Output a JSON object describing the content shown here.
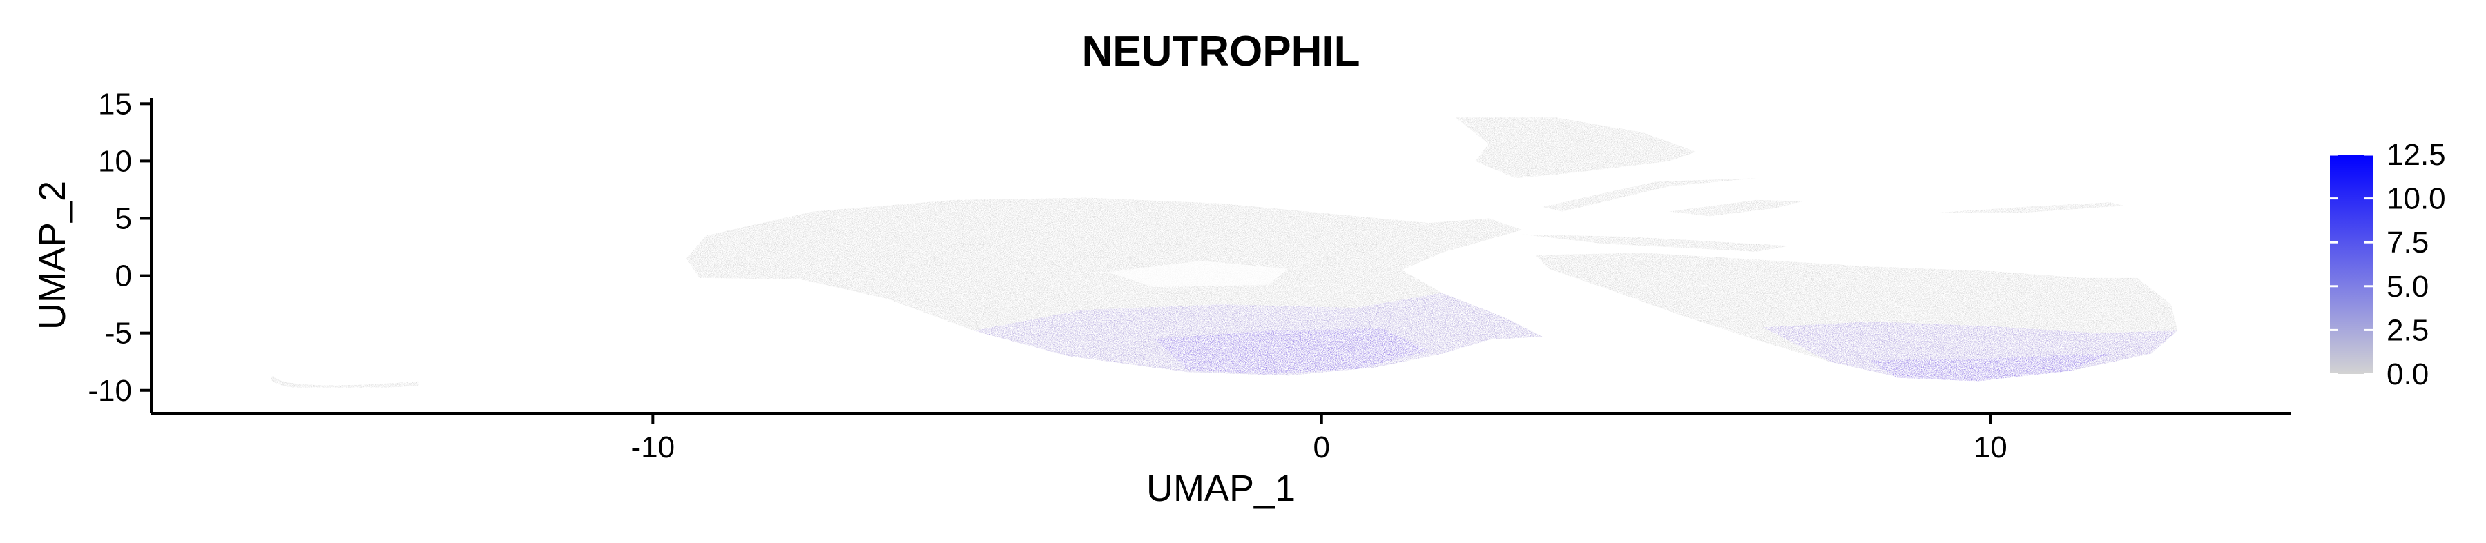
{
  "chart_data": {
    "type": "scatter",
    "title": "NEUTROPHIL",
    "xlabel": "UMAP_1",
    "ylabel": "UMAP_2",
    "xlim": [
      -17.5,
      14.5
    ],
    "ylim": [
      -12,
      15.5
    ],
    "x_ticks": [
      -10,
      0,
      10
    ],
    "y_ticks": [
      15,
      10,
      5,
      0,
      -5,
      -10
    ],
    "grid": false,
    "color_scale": {
      "low_color": "#d3d3d3",
      "high_color": "#0000ff",
      "min": 0,
      "max": 12.5,
      "legend_breaks": [
        "12.5",
        "10.0",
        "7.5",
        "5.0",
        "2.5",
        "0.0"
      ],
      "legend_position": "right"
    },
    "regions": [
      {
        "name": "main-cluster",
        "x_range": [
          -9.5,
          3.0
        ],
        "y_range": [
          -8.8,
          6.8
        ],
        "expression": "mostly 0.0; 2.5-7.5 along lower edge"
      },
      {
        "name": "upper-right-cluster",
        "x_range": [
          2.0,
          5.5
        ],
        "y_range": [
          8.5,
          13.8
        ],
        "expression": "mostly 0.0"
      },
      {
        "name": "right-cluster",
        "x_range": [
          3.0,
          12.8
        ],
        "y_range": [
          -9.2,
          2.0
        ],
        "expression": "mostly 0.0; 2.5-7.5 along lower edge"
      },
      {
        "name": "far-left-island",
        "x_range": [
          -15.7,
          -13.5
        ],
        "y_range": [
          -10.0,
          -8.8
        ],
        "expression": "0.0"
      }
    ]
  }
}
